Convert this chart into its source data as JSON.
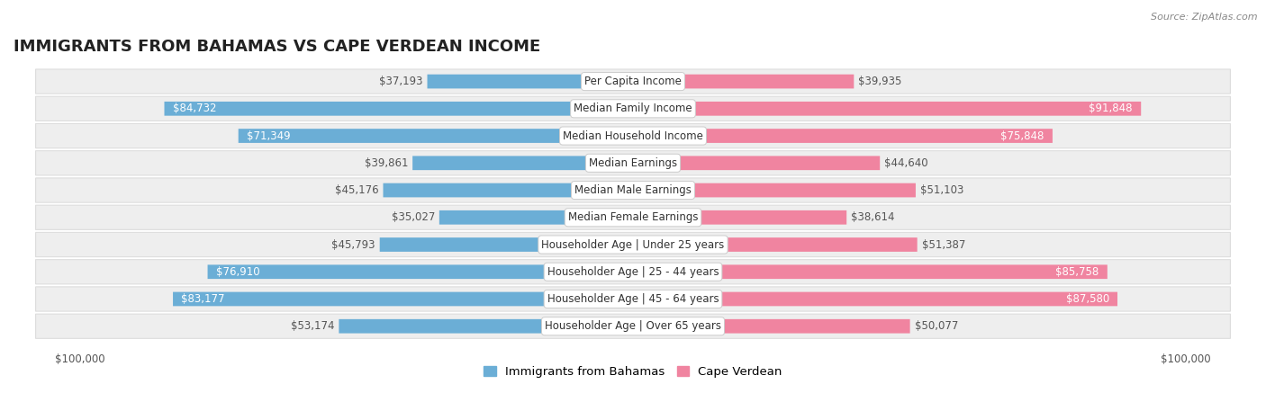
{
  "title": "IMMIGRANTS FROM BAHAMAS VS CAPE VERDEAN INCOME",
  "source": "Source: ZipAtlas.com",
  "categories": [
    "Per Capita Income",
    "Median Family Income",
    "Median Household Income",
    "Median Earnings",
    "Median Male Earnings",
    "Median Female Earnings",
    "Householder Age | Under 25 years",
    "Householder Age | 25 - 44 years",
    "Householder Age | 45 - 64 years",
    "Householder Age | Over 65 years"
  ],
  "bahamas_values": [
    37193,
    84732,
    71349,
    39861,
    45176,
    35027,
    45793,
    76910,
    83177,
    53174
  ],
  "capeverde_values": [
    39935,
    91848,
    75848,
    44640,
    51103,
    38614,
    51387,
    85758,
    87580,
    50077
  ],
  "bahamas_labels": [
    "$37,193",
    "$84,732",
    "$71,349",
    "$39,861",
    "$45,176",
    "$35,027",
    "$45,793",
    "$76,910",
    "$83,177",
    "$53,174"
  ],
  "capeverde_labels": [
    "$39,935",
    "$91,848",
    "$75,848",
    "$44,640",
    "$51,103",
    "$38,614",
    "$51,387",
    "$85,758",
    "$87,580",
    "$50,077"
  ],
  "max_value": 100000,
  "bahamas_color": "#6BAED6",
  "capeverde_color": "#F084A0",
  "bahamas_label_color_inside": "#ffffff",
  "capeverde_label_color_inside": "#ffffff",
  "bahamas_label_color_outside": "#555555",
  "capeverde_label_color_outside": "#555555",
  "bahamas_inside_threshold": 55000,
  "capeverde_inside_threshold": 55000,
  "bar_height": 0.52,
  "background_color": "#ffffff",
  "row_bg_color": "#eeeeee",
  "row_border_color": "#dddddd",
  "legend_bahamas": "Immigrants from Bahamas",
  "legend_capeverde": "Cape Verdean",
  "title_fontsize": 13,
  "label_fontsize": 8.5,
  "category_fontsize": 8.5,
  "legend_fontsize": 9.5,
  "axis_label_fontsize": 8.5
}
